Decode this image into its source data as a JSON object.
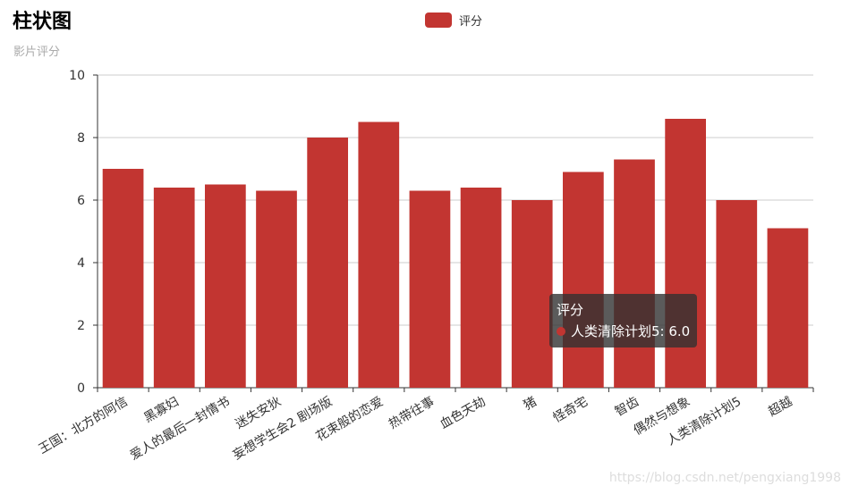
{
  "chart_data": {
    "type": "bar",
    "title": "柱状图",
    "subtitle": "影片评分",
    "categories": [
      "王国：北方的阿信",
      "黑寡妇",
      "爱人的最后一封情书",
      "迷失安狄",
      "妄想学生会2 剧场版",
      "花束般的恋爱",
      "热带往事",
      "血色天劫",
      "猪",
      "怪奇宅",
      "智齿",
      "偶然与想象",
      "人类清除计划5",
      "超越"
    ],
    "series": [
      {
        "name": "评分",
        "values": [
          7.0,
          6.4,
          6.5,
          6.3,
          8.0,
          8.5,
          6.3,
          6.4,
          6.0,
          6.9,
          7.3,
          8.6,
          6.0,
          5.1
        ]
      }
    ],
    "ylim": [
      0,
      10
    ],
    "yticks": [
      "0",
      "2",
      "4",
      "6",
      "8",
      "10"
    ],
    "grid": true,
    "legend_position": "top-center",
    "bar_color": "#c23531"
  },
  "tooltip": {
    "title": "评分",
    "text": "人类清除计划5: 6.0"
  },
  "watermark": "https://blog.csdn.net/pengxiang1998"
}
